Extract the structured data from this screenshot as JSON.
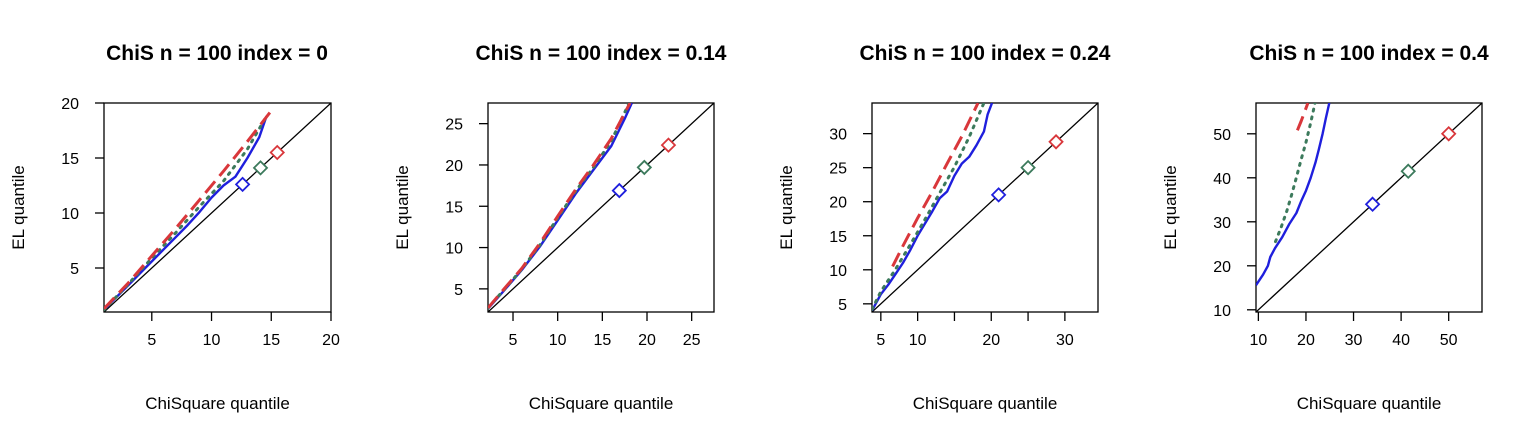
{
  "colors": {
    "blue": "#1f1fdd",
    "green": "#3c7a5c",
    "red": "#d9373b",
    "black": "#000000"
  },
  "chart_data": [
    {
      "type": "line",
      "title": "ChiS n = 100 index = 0",
      "xlabel": "ChiSquare quantile",
      "ylabel": "EL quantile",
      "xlim": [
        1,
        20
      ],
      "ylim": [
        1,
        20
      ],
      "xticks": [
        5,
        10,
        15,
        20
      ],
      "yticks": [
        5,
        10,
        15,
        20
      ],
      "grid": false,
      "series": [
        {
          "color": "black",
          "style": "solid",
          "x": [
            1,
            20
          ],
          "y": [
            1,
            20
          ]
        },
        {
          "color": "blue",
          "style": "solid",
          "x": [
            1,
            2,
            3,
            4,
            5,
            6,
            7,
            8,
            9,
            10,
            11,
            12,
            13,
            14,
            14.6
          ],
          "y": [
            1.2,
            2.3,
            3.4,
            4.5,
            5.6,
            6.7,
            7.8,
            8.9,
            10.1,
            11.4,
            12.5,
            13.3,
            15,
            16.9,
            18.8
          ]
        },
        {
          "color": "green",
          "style": "dotted",
          "x": [
            1,
            3,
            5,
            7,
            9,
            11,
            13,
            14.6
          ],
          "y": [
            1.2,
            3.5,
            5.9,
            8.2,
            10.6,
            12.9,
            15.8,
            18.8
          ]
        },
        {
          "color": "red",
          "style": "dashed",
          "x": [
            1,
            3,
            5,
            7,
            9,
            11,
            13,
            15
          ],
          "y": [
            1.3,
            3.6,
            6.1,
            8.6,
            11.2,
            13.8,
            16.5,
            19.3
          ]
        }
      ],
      "markers": [
        {
          "color": "blue",
          "x": 12.6,
          "y": 12.6
        },
        {
          "color": "green",
          "x": 14.1,
          "y": 14.1
        },
        {
          "color": "red",
          "x": 15.5,
          "y": 15.5
        }
      ]
    },
    {
      "type": "line",
      "title": "ChiS n = 100 index = 0.14",
      "xlabel": "ChiSquare quantile",
      "ylabel": "EL quantile",
      "xlim": [
        2.2,
        27.5
      ],
      "ylim": [
        2.2,
        27.5
      ],
      "xticks": [
        5,
        10,
        15,
        20,
        25
      ],
      "yticks": [
        5,
        10,
        15,
        20,
        25
      ],
      "grid": false,
      "series": [
        {
          "color": "black",
          "style": "solid",
          "x": [
            2.2,
            27.5
          ],
          "y": [
            2.2,
            27.5
          ]
        },
        {
          "color": "blue",
          "style": "solid",
          "x": [
            2.2,
            4,
            6,
            8,
            10,
            12,
            14,
            16,
            17.5,
            18.3
          ],
          "y": [
            2.6,
            4.8,
            7.3,
            10.1,
            13.3,
            16.5,
            19.4,
            22.3,
            25.6,
            27.5
          ]
        },
        {
          "color": "green",
          "style": "dotted",
          "x": [
            2.2,
            4,
            6,
            8,
            10,
            12,
            14,
            16,
            18
          ],
          "y": [
            2.7,
            4.9,
            7.4,
            10.3,
            13.6,
            16.8,
            19.7,
            22.9,
            27.5
          ]
        },
        {
          "color": "red",
          "style": "dashed",
          "x": [
            2.2,
            4,
            6,
            8,
            10,
            12,
            14,
            16,
            18.1
          ],
          "y": [
            2.7,
            5,
            7.5,
            10.5,
            13.8,
            17,
            20,
            23.2,
            27.5
          ]
        }
      ],
      "markers": [
        {
          "color": "blue",
          "x": 16.9,
          "y": 16.9
        },
        {
          "color": "green",
          "x": 19.7,
          "y": 19.7
        },
        {
          "color": "red",
          "x": 22.4,
          "y": 22.4
        }
      ]
    },
    {
      "type": "line",
      "title": "ChiS n = 100 index = 0.24",
      "xlabel": "ChiSquare quantile",
      "ylabel": "EL quantile",
      "xlim": [
        3.8,
        34.5
      ],
      "ylim": [
        3.8,
        34.5
      ],
      "xticks": [
        5,
        10,
        15,
        20,
        25,
        30
      ],
      "xticklabels": [
        "5",
        "10",
        "",
        "20",
        "",
        "30"
      ],
      "yticks": [
        5,
        10,
        15,
        20,
        25,
        30
      ],
      "grid": false,
      "series": [
        {
          "color": "black",
          "style": "solid",
          "x": [
            3.8,
            34.5
          ],
          "y": [
            3.8,
            34.5
          ]
        },
        {
          "color": "blue",
          "style": "solid",
          "x": [
            3.8,
            5,
            6,
            7,
            8,
            9,
            10,
            11,
            12,
            13,
            14,
            15,
            16,
            17,
            18,
            19,
            19.5,
            20.1
          ],
          "y": [
            4,
            6.4,
            7.8,
            9.4,
            11,
            12.9,
            15,
            16.8,
            18.6,
            20.5,
            21.5,
            23.8,
            25.6,
            26.6,
            28.3,
            30.3,
            32.8,
            34.5
          ]
        },
        {
          "color": "green",
          "style": "dotted",
          "x": [
            3.8,
            5,
            7,
            9,
            11,
            13,
            15,
            17,
            19
          ],
          "y": [
            4.2,
            6.8,
            10.1,
            13.7,
            17.4,
            21.3,
            25.1,
            29.5,
            34.5
          ]
        },
        {
          "color": "red",
          "style": "dashed",
          "x": [
            6.6,
            8,
            10,
            12,
            14,
            16,
            18.2
          ],
          "y": [
            10.5,
            13.5,
            17.6,
            21.5,
            25.6,
            29.6,
            34.5
          ]
        }
      ],
      "markers": [
        {
          "color": "blue",
          "x": 21,
          "y": 21
        },
        {
          "color": "green",
          "x": 25,
          "y": 25
        },
        {
          "color": "red",
          "x": 28.8,
          "y": 28.8
        }
      ]
    },
    {
      "type": "line",
      "title": "ChiS n = 100 index = 0.4",
      "xlabel": "ChiSquare quantile",
      "ylabel": "EL quantile",
      "xlim": [
        9.5,
        57
      ],
      "ylim": [
        9.5,
        57
      ],
      "xticks": [
        10,
        20,
        30,
        40,
        50
      ],
      "yticks": [
        10,
        20,
        30,
        40,
        50
      ],
      "grid": false,
      "series": [
        {
          "color": "black",
          "style": "solid",
          "x": [
            9.5,
            57
          ],
          "y": [
            9.5,
            57
          ]
        },
        {
          "color": "blue",
          "style": "solid",
          "x": [
            9.5,
            11,
            12,
            12.5,
            13.5,
            15,
            16.5,
            18,
            19,
            20,
            21,
            22,
            22.7,
            23.5,
            24.2,
            24.9
          ],
          "y": [
            15.6,
            18,
            20,
            22,
            24,
            26.5,
            29.5,
            32,
            34.7,
            37.1,
            40,
            43.5,
            46.4,
            50,
            53.6,
            57
          ]
        },
        {
          "color": "green",
          "style": "dotted",
          "x": [
            13.6,
            14.8,
            16,
            17,
            18,
            19,
            20,
            21,
            21.9
          ],
          "y": [
            25.5,
            28.8,
            32.5,
            36.2,
            40.1,
            44.2,
            48.1,
            52.5,
            57
          ]
        },
        {
          "color": "red",
          "style": "dashed",
          "x": [
            18.2,
            19,
            19.7,
            20.4
          ],
          "y": [
            50.8,
            52.9,
            54.9,
            57
          ]
        }
      ],
      "markers": [
        {
          "color": "blue",
          "x": 34,
          "y": 34
        },
        {
          "color": "green",
          "x": 41.5,
          "y": 41.5
        },
        {
          "color": "red",
          "x": 50,
          "y": 50
        }
      ]
    }
  ]
}
